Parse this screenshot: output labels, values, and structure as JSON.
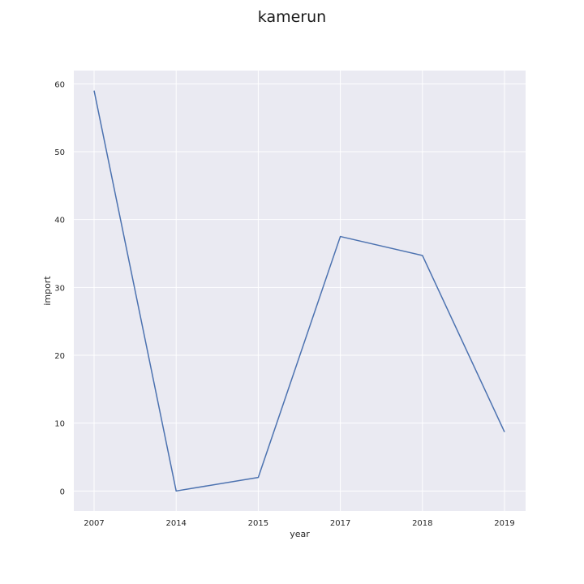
{
  "chart_data": {
    "type": "line",
    "title": "kamerun",
    "xlabel": "year",
    "ylabel": "import",
    "categories": [
      "2007",
      "2014",
      "2015",
      "2017",
      "2018",
      "2019"
    ],
    "series": [
      {
        "values": [
          59.0,
          0.0,
          2.0,
          37.5,
          34.7,
          8.7
        ]
      }
    ],
    "yticks": [
      0,
      10,
      20,
      30,
      40,
      50,
      60
    ],
    "ylim": [
      -2.95,
      61.95
    ],
    "grid": true,
    "line_color": "#4c72b0",
    "background_color": "#eaeaf2",
    "grid_color": "#ffffff"
  }
}
